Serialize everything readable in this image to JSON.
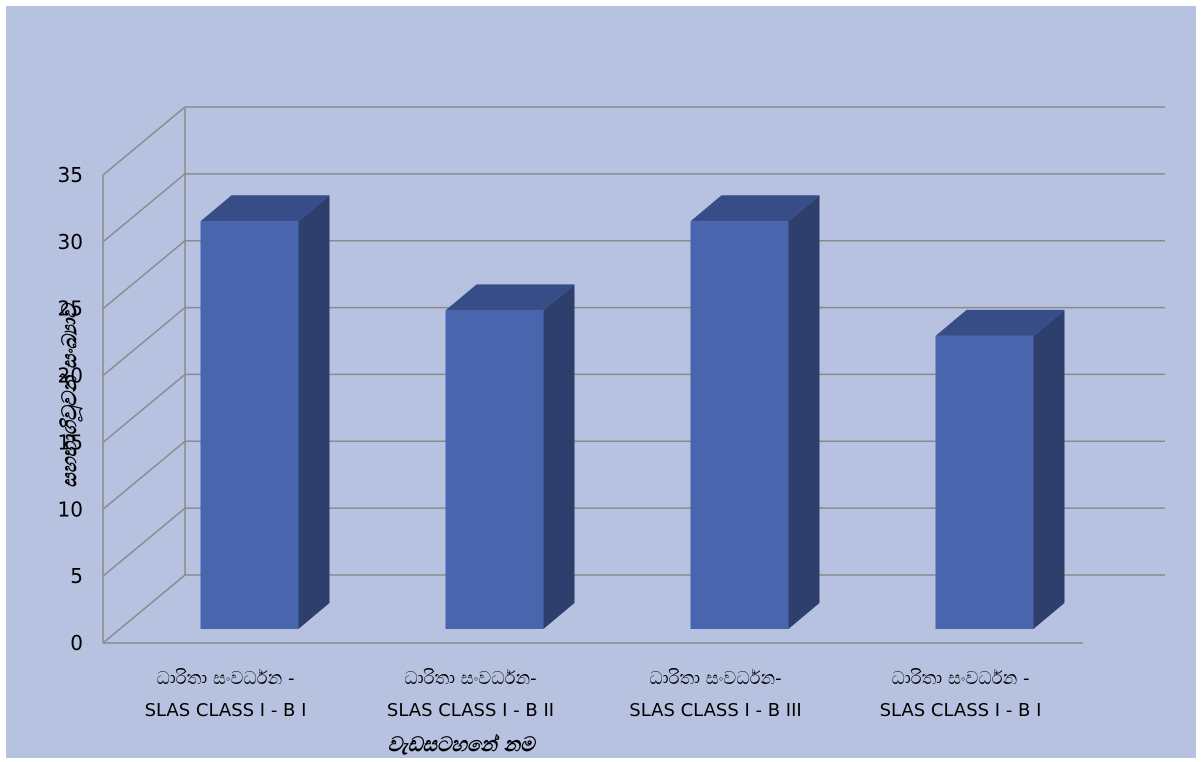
{
  "chart_data": {
    "type": "bar",
    "categories": [
      [
        "ධාරිතා සංවර්ධන -",
        "SLAS CLASS I - B I"
      ],
      [
        "ධාරිතා සංවර්ධන-",
        "SLAS CLASS I - B II"
      ],
      [
        "ධාරිතා සංවර්ධන-",
        "SLAS CLASS I - B III"
      ],
      [
        "ධාරිතා සංවර්ධන -",
        "SLAS CLASS I - B I"
      ]
    ],
    "values": [
      32,
      25,
      32,
      23
    ],
    "xlabel": "වැඩසටහනේ නම",
    "ylabel": "සහභාගිවූවන් සංඛ්‍යාව",
    "ylim": [
      0,
      35
    ],
    "yticks": [
      0,
      5,
      10,
      15,
      20,
      25,
      30,
      35
    ],
    "grid": true,
    "style": "3d-column"
  },
  "colors": {
    "background": "#b6c2df",
    "bar_front": "#4865ad",
    "bar_side": "#2e3f6e",
    "bar_top": "#364d88",
    "grid": "#8a8a8a"
  }
}
